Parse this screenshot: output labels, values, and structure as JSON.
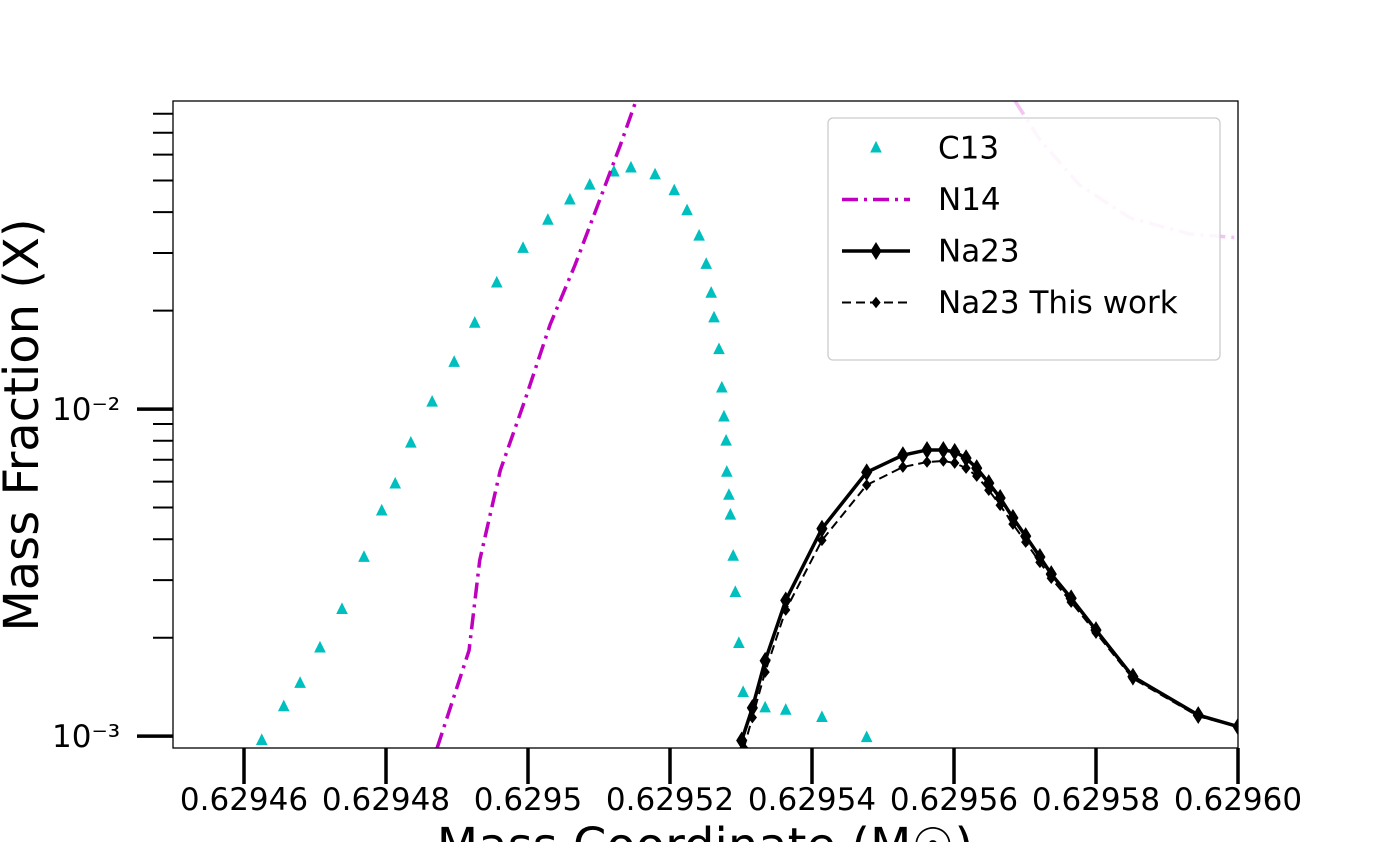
{
  "chart_data": {
    "type": "line",
    "x_label": "Mass Coordinate (M☉)",
    "y_label": "Mass Fraction (X)",
    "xlim": [
      0.62945,
      0.6296
    ],
    "ylim": [
      0.00092,
      0.0875
    ],
    "y_scale": "log",
    "xticks": [
      0.62946,
      0.62948,
      0.6295,
      0.62952,
      0.62954,
      0.62956,
      0.62958,
      {
        "value": 0.6296,
        "label": "0.62960"
      }
    ],
    "yticks": [
      {
        "value": 0.001,
        "label": "10⁻³"
      },
      {
        "value": 0.01,
        "label": "10⁻²"
      }
    ],
    "yminor": [
      0.002,
      0.003,
      0.004,
      0.005,
      0.006,
      0.007,
      0.008,
      0.009,
      0.02,
      0.03,
      0.04,
      0.05,
      0.06,
      0.07,
      0.08
    ],
    "legend_position": "upper right",
    "series": [
      {
        "name": "C13",
        "color": "#00bfbf",
        "marker": "triangle",
        "linestyle": "none",
        "x": [
          0.6294625,
          0.6294656,
          0.6294679,
          0.6294707,
          0.6294738,
          0.6294769,
          0.6294794,
          0.6294813,
          0.6294835,
          0.6294865,
          0.6294896,
          0.6294925,
          0.6294956,
          0.6294993,
          0.6295028,
          0.6295059,
          0.6295087,
          0.6295121,
          0.6295145,
          0.6295179,
          0.6295206,
          0.6295224,
          0.6295241,
          0.6295251,
          0.6295258,
          0.6295262,
          0.6295269,
          0.6295273,
          0.6295276,
          0.6295279,
          0.629528,
          0.6295283,
          0.6295285,
          0.6295289,
          0.6295292,
          0.6295297,
          0.6295303,
          0.6295334,
          0.6295363,
          0.6295414,
          0.6295477
        ],
        "values": [
          0.00097,
          0.00123,
          0.00145,
          0.00186,
          0.00244,
          0.00352,
          0.00488,
          0.0059,
          0.00787,
          0.0105,
          0.0139,
          0.0183,
          0.0243,
          0.031,
          0.0378,
          0.0436,
          0.0484,
          0.0531,
          0.0546,
          0.052,
          0.0465,
          0.0404,
          0.0338,
          0.0277,
          0.0226,
          0.019,
          0.0152,
          0.0116,
          0.00946,
          0.00798,
          0.00641,
          0.00545,
          0.00474,
          0.00355,
          0.00275,
          0.00192,
          0.00136,
          0.00122,
          0.0012,
          0.00114,
          0.00099
        ]
      },
      {
        "name": "N14",
        "color": "#bf00bf",
        "marker": "none",
        "linestyle": "dashdot",
        "x": [
          0.6294872,
          0.6294917,
          0.6294932,
          0.6294961,
          0.6294996,
          0.6295031,
          0.6295066,
          0.6295101,
          0.629513,
          0.6295152
        ],
        "values": [
          0.00092,
          0.00183,
          0.00345,
          0.0065,
          0.0107,
          0.0181,
          0.0275,
          0.0436,
          0.0641,
          0.0875
        ]
      },
      {
        "color": "#f2c4f2",
        "marker": "none",
        "linestyle": "dashdot",
        "x": [
          0.6295686,
          0.6295721,
          0.6295777,
          0.6295848,
          0.6295932,
          0.6296
        ],
        "values": [
          0.0875,
          0.0665,
          0.0484,
          0.0384,
          0.0343,
          0.0334
        ]
      },
      {
        "name": "Na23",
        "color": "#000000",
        "marker": "diamond",
        "linestyle": "solid",
        "x": [
          0.6295301,
          0.6295316,
          0.6295334,
          0.6295363,
          0.6295414,
          0.6295477,
          0.6295528,
          0.6295562,
          0.6295585,
          0.6295601,
          0.6295617,
          0.6295632,
          0.6295649,
          0.6295665,
          0.6295683,
          0.6295701,
          0.6295721,
          0.6295737,
          0.6295765,
          0.62958,
          0.6295852,
          0.6295944,
          0.6296
        ],
        "values": [
          0.00097,
          0.00122,
          0.0017,
          0.0026,
          0.00431,
          0.00641,
          0.00723,
          0.0075,
          0.0075,
          0.0074,
          0.00708,
          0.0066,
          0.00594,
          0.00535,
          0.00465,
          0.00409,
          0.00353,
          0.00313,
          0.00264,
          0.00211,
          0.00152,
          0.00116,
          0.00107
        ]
      },
      {
        "name": "Na23 This work",
        "color": "#000000",
        "marker": "small-diamond",
        "linestyle": "dashed",
        "x": [
          0.6295304,
          0.6295316,
          0.6295334,
          0.6295363,
          0.6295414,
          0.6295477,
          0.6295528,
          0.6295562,
          0.6295585,
          0.6295601,
          0.6295617,
          0.6295632,
          0.6295649,
          0.6295665,
          0.6295683,
          0.6295701,
          0.6295721,
          0.6295737,
          0.6295765,
          0.62958,
          0.6295852,
          0.6295944,
          0.6296
        ],
        "values": [
          0.00092,
          0.00114,
          0.00157,
          0.00243,
          0.00397,
          0.00586,
          0.00665,
          0.00689,
          0.00694,
          0.00684,
          0.0066,
          0.00624,
          0.00565,
          0.00508,
          0.00445,
          0.00392,
          0.0034,
          0.00304,
          0.00257,
          0.00207,
          0.0015,
          0.00115,
          0.00107
        ]
      }
    ]
  }
}
